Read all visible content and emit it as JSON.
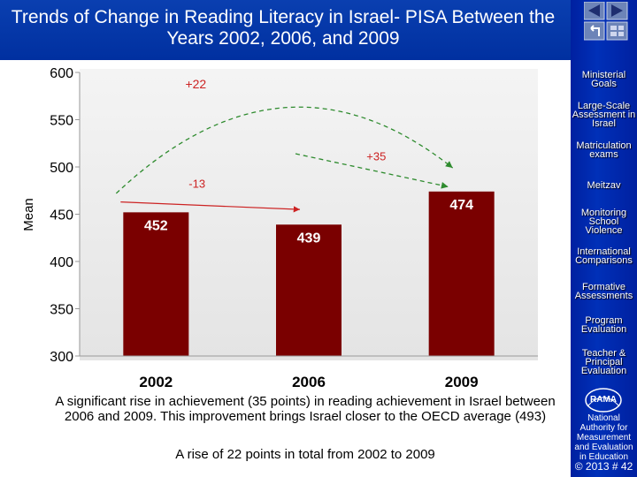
{
  "header": {
    "title": "Trends of Change in Reading Literacy in Israel-  PISA Between the Years 2002, 2006, and 2009"
  },
  "sidebar": {
    "items": [
      {
        "label": "Ministerial Goals"
      },
      {
        "label": "Large-Scale Assessment in Israel"
      },
      {
        "label": "Matriculation exams"
      },
      {
        "label": "Meitzav"
      },
      {
        "label": "Monitoring School Violence"
      },
      {
        "label": "International Comparisons"
      },
      {
        "label": "Formative Assessments"
      },
      {
        "label": "Program Evaluation"
      },
      {
        "label": "Teacher & Principal Evaluation"
      }
    ],
    "logo_text": "RAMA",
    "org_name": "National Authority for Measurement and Evaluation in Education",
    "copyright": "© 2013 # 42"
  },
  "chart_data": {
    "type": "bar",
    "ylabel": "Mean",
    "ylim": [
      300,
      600
    ],
    "yticks": [
      300,
      350,
      400,
      450,
      500,
      550,
      600
    ],
    "categories": [
      "2002",
      "2006",
      "2009"
    ],
    "values": [
      452,
      439,
      474
    ],
    "bar_color": "#7a0000",
    "annotations": [
      {
        "label": "+22",
        "from": "2002",
        "to": "2009",
        "color": "#2e8b2e",
        "style": "dashed-arc"
      },
      {
        "label": "+35",
        "from": "2006",
        "to": "2009",
        "color": "#2e8b2e",
        "style": "dashed-arrow"
      },
      {
        "label": "-13",
        "from": "2002",
        "to": "2006",
        "color": "#cc2222",
        "style": "arrow"
      }
    ]
  },
  "captions": {
    "main": "A significant rise in achievement (35 points) in reading achievement in Israel between 2006 and 2009. This improvement brings Israel closer to the OECD average (493)",
    "secondary": "A rise of 22 points in total from 2002 to 2009"
  }
}
